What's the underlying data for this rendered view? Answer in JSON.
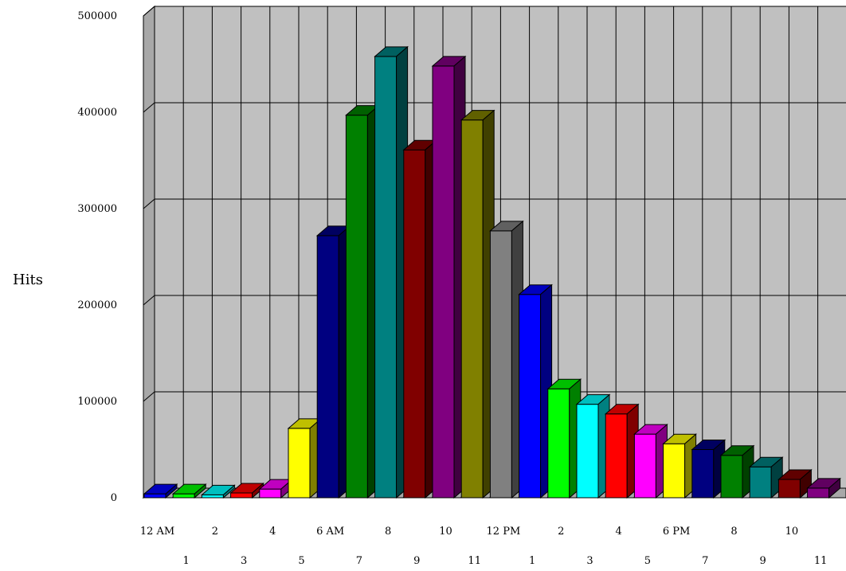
{
  "chart_data": {
    "type": "bar",
    "title": "",
    "xlabel": "",
    "ylabel": "Hits",
    "ylim": [
      0,
      500000
    ],
    "yticks": [
      0,
      100000,
      200000,
      300000,
      400000,
      500000
    ],
    "grid": true,
    "style": "3d",
    "background": "#c0c0c0",
    "categories": [
      "12 AM",
      "1",
      "2",
      "3",
      "4",
      "5",
      "6 AM",
      "7",
      "8",
      "9",
      "10",
      "11",
      "12 PM",
      "1",
      "2",
      "3",
      "4",
      "5",
      "6 PM",
      "7",
      "8",
      "9",
      "10",
      "11"
    ],
    "values": [
      4000,
      4000,
      3000,
      5000,
      9000,
      72000,
      272000,
      397000,
      458000,
      361000,
      448000,
      392000,
      277000,
      211000,
      113000,
      97000,
      87000,
      66000,
      56000,
      50000,
      44000,
      32000,
      19000,
      10000
    ],
    "colors": [
      "#0000ff",
      "#00ff00",
      "#00ffff",
      "#ff0000",
      "#ff00ff",
      "#ffff00",
      "#000080",
      "#008000",
      "#008080",
      "#800000",
      "#800080",
      "#808000",
      "#808080",
      "#0000ff",
      "#00ff00",
      "#00ffff",
      "#ff0000",
      "#ff00ff",
      "#ffff00",
      "#000080",
      "#008000",
      "#008080",
      "#800000",
      "#800080"
    ]
  }
}
